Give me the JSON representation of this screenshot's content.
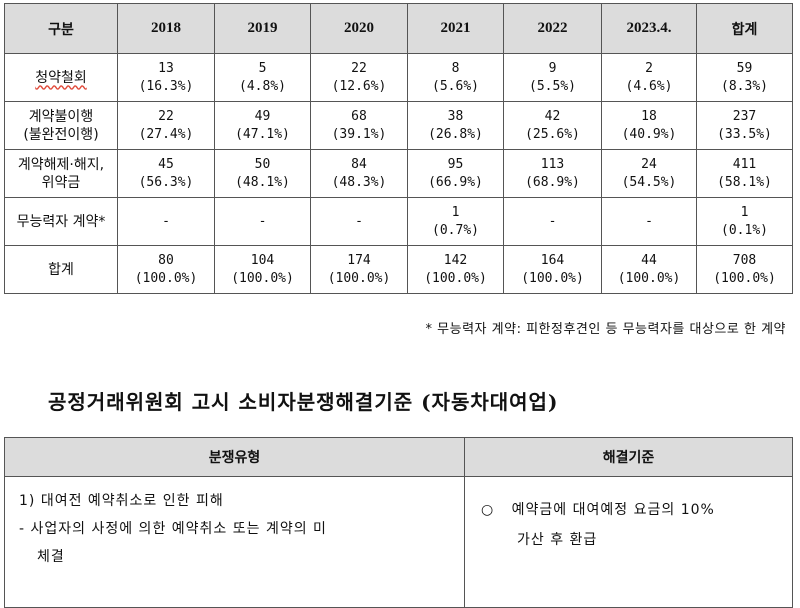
{
  "stats_table": {
    "headers": [
      "구분",
      "2018",
      "2019",
      "2020",
      "2021",
      "2022",
      "2023.4.",
      "합계"
    ],
    "rows": [
      {
        "label_lines": [
          "청약철회"
        ],
        "cells": [
          [
            "13",
            "(16.3%)"
          ],
          [
            "5",
            "(4.8%)"
          ],
          [
            "22",
            "(12.6%)"
          ],
          [
            "8",
            "(5.6%)"
          ],
          [
            "9",
            "(5.5%)"
          ],
          [
            "2",
            "(4.6%)"
          ],
          [
            "59",
            "(8.3%)"
          ]
        ]
      },
      {
        "label_lines": [
          "계약불이행",
          "(불완전이행)"
        ],
        "cells": [
          [
            "22",
            "(27.4%)"
          ],
          [
            "49",
            "(47.1%)"
          ],
          [
            "68",
            "(39.1%)"
          ],
          [
            "38",
            "(26.8%)"
          ],
          [
            "42",
            "(25.6%)"
          ],
          [
            "18",
            "(40.9%)"
          ],
          [
            "237",
            "(33.5%)"
          ]
        ]
      },
      {
        "label_lines": [
          "계약해제·해지,",
          "위약금"
        ],
        "cells": [
          [
            "45",
            "(56.3%)"
          ],
          [
            "50",
            "(48.1%)"
          ],
          [
            "84",
            "(48.3%)"
          ],
          [
            "95",
            "(66.9%)"
          ],
          [
            "113",
            "(68.9%)"
          ],
          [
            "24",
            "(54.5%)"
          ],
          [
            "411",
            "(58.1%)"
          ]
        ]
      },
      {
        "label_lines": [
          "무능력자 계약*"
        ],
        "cells": [
          [
            "-",
            ""
          ],
          [
            "-",
            ""
          ],
          [
            "-",
            ""
          ],
          [
            "1",
            "(0.7%)"
          ],
          [
            "-",
            ""
          ],
          [
            "-",
            ""
          ],
          [
            "1",
            "(0.1%)"
          ]
        ]
      },
      {
        "label_lines": [
          "합계"
        ],
        "cells": [
          [
            "80",
            "(100.0%)"
          ],
          [
            "104",
            "(100.0%)"
          ],
          [
            "174",
            "(100.0%)"
          ],
          [
            "142",
            "(100.0%)"
          ],
          [
            "164",
            "(100.0%)"
          ],
          [
            "44",
            "(100.0%)"
          ],
          [
            "708",
            "(100.0%)"
          ]
        ]
      }
    ]
  },
  "footnote": "* 무능력자 계약: 피한정후견인 등 무능력자를 대상으로 한 계약",
  "heading": "공정거래위원회 고시 소비자분쟁해결기준 (자동차대여업)",
  "rules_table": {
    "header_left": "분쟁유형",
    "header_right": "해결기준",
    "row": {
      "type_title": "1) 대여전 예약취소로 인한 피해",
      "type_detail_1": "- 사업자의 사정에 의한 예약취소 또는 계약의 미",
      "type_detail_2": "체결",
      "resolution_bullet": "○",
      "resolution_line_1": "예약금에 대여예정 요금의 10%",
      "resolution_line_2": "가산 후 환급"
    }
  }
}
